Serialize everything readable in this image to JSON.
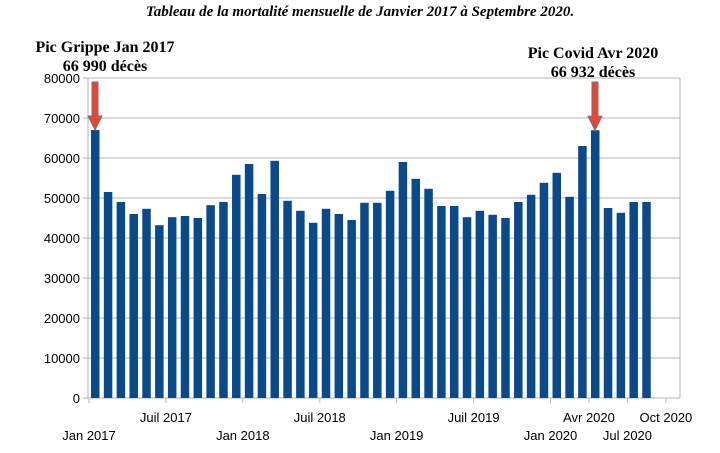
{
  "chart_data": {
    "type": "bar",
    "title": "Tableau de la mortalité mensuelle de Janvier 2017 à Septembre 2020.",
    "xlabel": "",
    "ylabel": "",
    "ylim": [
      0,
      80000
    ],
    "yticks": [
      0,
      10000,
      20000,
      30000,
      40000,
      50000,
      60000,
      70000,
      80000
    ],
    "grid": true,
    "color": "#0b4a8a",
    "x_tick_labels": [
      {
        "label": "Jan 2017",
        "month": 0,
        "row": 2
      },
      {
        "label": "Juil 2017",
        "month": 6,
        "row": 1
      },
      {
        "label": "Jan 2018",
        "month": 12,
        "row": 2
      },
      {
        "label": "Juil 2018",
        "month": 18,
        "row": 1
      },
      {
        "label": "Jan 2019",
        "month": 24,
        "row": 2
      },
      {
        "label": "Juil 2019",
        "month": 30,
        "row": 1
      },
      {
        "label": "Jan 2020",
        "month": 36,
        "row": 2
      },
      {
        "label": "Avr 2020",
        "month": 39,
        "row": 1
      },
      {
        "label": "Jul 2020",
        "month": 42,
        "row": 2
      },
      {
        "label": "Oct 2020",
        "month": 45,
        "row": 1
      }
    ],
    "values": [
      66990,
      51500,
      49000,
      46000,
      47300,
      43200,
      45200,
      45500,
      45000,
      48200,
      49000,
      55800,
      58500,
      51000,
      59300,
      49300,
      46800,
      43800,
      47300,
      46000,
      44500,
      48800,
      48800,
      51800,
      59000,
      54800,
      52300,
      48000,
      48000,
      45200,
      46800,
      45800,
      45000,
      49000,
      50800,
      53800,
      56300,
      50300,
      63000,
      66932,
      47500,
      46300,
      49000,
      49000
    ],
    "annotations": [
      {
        "line1": "Pic Grippe Jan 2017",
        "line2": "66 990 décès",
        "month": 0
      },
      {
        "line1": "Pic Covid Avr 2020",
        "line2": "66 932 décès",
        "month": 39
      }
    ],
    "arrow_color": "#e8452c"
  }
}
